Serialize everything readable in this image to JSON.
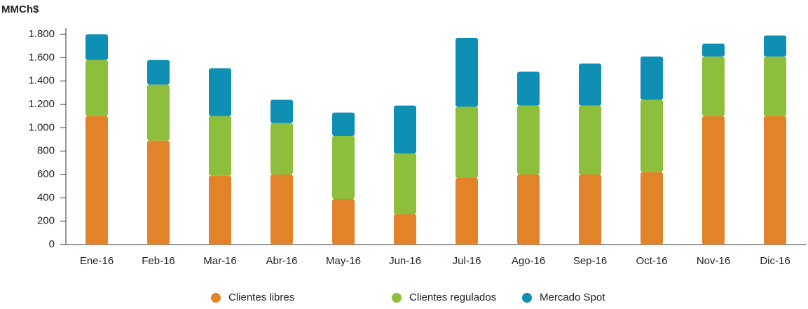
{
  "chart_data": {
    "type": "stacked_bar",
    "y_axis_label": "MMCh$",
    "categories": [
      "Ene-16",
      "Feb-16",
      "Mar-16",
      "Abr-16",
      "May-16",
      "Jun-16",
      "Jul-16",
      "Ago-16",
      "Sep-16",
      "Oct-16",
      "Nov-16",
      "Dic-16"
    ],
    "series": [
      {
        "name": "Clientes libres",
        "color": "#e2832a",
        "values": [
          1100,
          890,
          590,
          600,
          390,
          260,
          570,
          600,
          600,
          620,
          1100,
          1100
        ]
      },
      {
        "name": "Clientes regulados",
        "color": "#8dbf3c",
        "values": [
          480,
          480,
          510,
          440,
          540,
          520,
          610,
          590,
          590,
          620,
          510,
          510
        ]
      },
      {
        "name": "Mercado Spot",
        "color": "#0f8fb3",
        "values": [
          220,
          210,
          410,
          200,
          200,
          410,
          590,
          290,
          360,
          370,
          110,
          180
        ]
      }
    ],
    "ylim": [
      0,
      1800
    ],
    "yticks": [
      0,
      200,
      400,
      600,
      800,
      {
        "value": 1000,
        "label": "1.000"
      },
      {
        "value": 1200,
        "label": "1.200"
      },
      {
        "value": 1400,
        "label": "1.400"
      },
      {
        "value": 1600,
        "label": "1.600"
      },
      {
        "value": 1800,
        "label": "1.800"
      }
    ],
    "legend": "bottom",
    "grid": false
  }
}
